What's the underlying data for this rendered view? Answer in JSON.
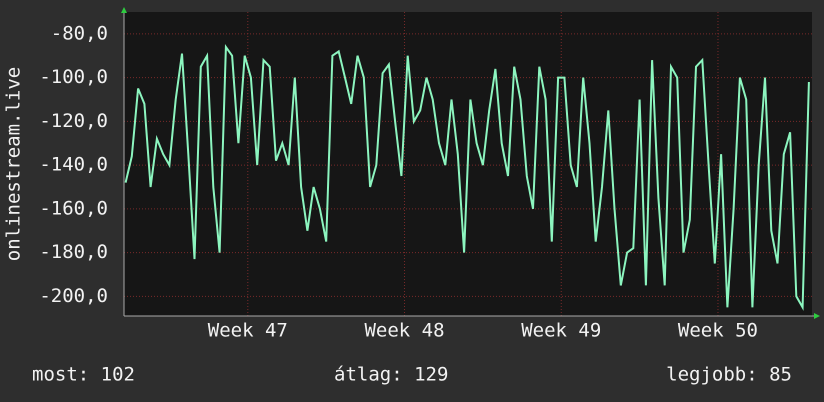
{
  "chart_data": {
    "type": "line",
    "y_label": "onlinestream.live",
    "xlim": [
      46.21,
      50.6
    ],
    "xticks": [
      {
        "value": 47,
        "label": "Week 47"
      },
      {
        "value": 48,
        "label": "Week 48"
      },
      {
        "value": 49,
        "label": "Week 49"
      },
      {
        "value": 50,
        "label": "Week 50"
      }
    ],
    "ylim": [
      -209,
      -70
    ],
    "yticks": [
      {
        "value": -80,
        "label": "-80,0"
      },
      {
        "value": -100,
        "label": "-100,0"
      },
      {
        "value": -120,
        "label": "-120,0"
      },
      {
        "value": -140,
        "label": "-140,0"
      },
      {
        "value": -160,
        "label": "-160,0"
      },
      {
        "value": -180,
        "label": "-180,0"
      },
      {
        "value": -200,
        "label": "-200,0"
      }
    ],
    "grid": true,
    "series": [
      {
        "color": "#8cf5bf",
        "x": [
          46.22,
          46.26,
          46.3,
          46.34,
          46.38,
          46.42,
          46.46,
          46.5,
          46.54,
          46.58,
          46.62,
          46.66,
          46.7,
          46.74,
          46.78,
          46.82,
          46.86,
          46.9,
          46.94,
          46.98,
          47.02,
          47.06,
          47.1,
          47.14,
          47.18,
          47.22,
          47.26,
          47.3,
          47.34,
          47.38,
          47.42,
          47.46,
          47.5,
          47.54,
          47.58,
          47.62,
          47.66,
          47.7,
          47.74,
          47.78,
          47.82,
          47.86,
          47.9,
          47.94,
          47.98,
          48.02,
          48.06,
          48.1,
          48.14,
          48.18,
          48.22,
          48.26,
          48.3,
          48.34,
          48.38,
          48.42,
          48.46,
          48.5,
          48.54,
          48.58,
          48.62,
          48.66,
          48.7,
          48.74,
          48.78,
          48.82,
          48.86,
          48.9,
          48.94,
          48.98,
          49.02,
          49.06,
          49.1,
          49.14,
          49.18,
          49.22,
          49.26,
          49.3,
          49.34,
          49.38,
          49.42,
          49.46,
          49.5,
          49.54,
          49.58,
          49.62,
          49.66,
          49.7,
          49.74,
          49.78,
          49.82,
          49.86,
          49.9,
          49.94,
          49.98,
          50.02,
          50.06,
          50.1,
          50.14,
          50.18,
          50.22,
          50.26,
          50.3,
          50.34,
          50.38,
          50.42,
          50.46,
          50.5,
          50.54,
          50.58
        ],
        "values": [
          -148,
          -136,
          -105,
          -112,
          -150,
          -128,
          -135,
          -140,
          -110,
          -89,
          -135,
          -183,
          -95,
          -90,
          -150,
          -180,
          -86,
          -90,
          -130,
          -90,
          -100,
          -140,
          -92,
          -95,
          -138,
          -130,
          -140,
          -100,
          -150,
          -170,
          -150,
          -160,
          -175,
          -90,
          -88,
          -100,
          -112,
          -90,
          -100,
          -150,
          -140,
          -98,
          -94,
          -120,
          -145,
          -90,
          -120,
          -115,
          -100,
          -110,
          -130,
          -140,
          -110,
          -135,
          -180,
          -110,
          -130,
          -140,
          -115,
          -96,
          -130,
          -145,
          -95,
          -110,
          -145,
          -160,
          -95,
          -110,
          -175,
          -100,
          -100,
          -140,
          -150,
          -100,
          -130,
          -175,
          -150,
          -115,
          -160,
          -195,
          -180,
          -178,
          -110,
          -195,
          -92,
          -155,
          -195,
          -95,
          -100,
          -180,
          -165,
          -95,
          -92,
          -140,
          -185,
          -135,
          -205,
          -160,
          -100,
          -110,
          -205,
          -140,
          -100,
          -170,
          -185,
          -135,
          -125,
          -200,
          -205,
          -102
        ]
      }
    ]
  },
  "footer": {
    "current": "most: 102",
    "average": "átlag: 129",
    "best": "legjobb: 85"
  }
}
